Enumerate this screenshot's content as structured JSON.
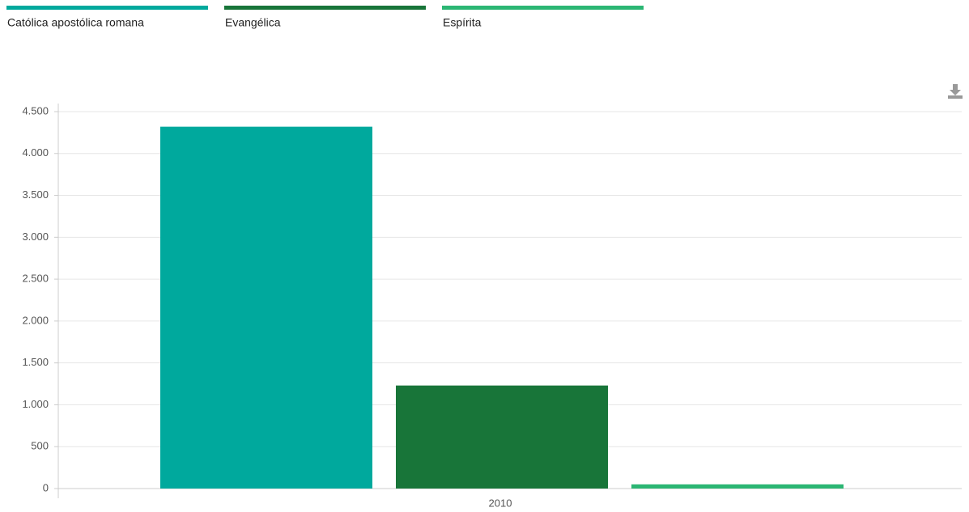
{
  "chart_data": {
    "type": "bar",
    "categories": [
      "2010"
    ],
    "series": [
      {
        "name": "Católica apostólica romana",
        "color": "#00a99d",
        "values": [
          4320
        ]
      },
      {
        "name": "Evangélica",
        "color": "#187539",
        "values": [
          1230
        ]
      },
      {
        "name": "Espírita",
        "color": "#2bb673",
        "values": [
          50
        ]
      }
    ],
    "ylim": [
      0,
      4500
    ],
    "yticks": [
      0,
      500,
      {
        "value": 1000,
        "label": "1.000"
      },
      {
        "value": 1500,
        "label": "1.500"
      },
      {
        "value": 2000,
        "label": "2.000"
      },
      {
        "value": 2500,
        "label": "2.500"
      },
      {
        "value": 3000,
        "label": "3.000"
      },
      {
        "value": 3500,
        "label": "3.500"
      },
      {
        "value": 4000,
        "label": "4.000"
      },
      {
        "value": 4500,
        "label": "4.500"
      }
    ],
    "grid": true
  }
}
